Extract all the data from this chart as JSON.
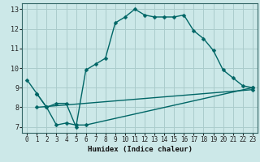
{
  "title": "",
  "xlabel": "Humidex (Indice chaleur)",
  "ylabel": "",
  "background_color": "#cce8e8",
  "grid_color": "#aacccc",
  "line_color": "#006666",
  "xlim": [
    -0.5,
    23.5
  ],
  "ylim": [
    6.7,
    13.3
  ],
  "yticks": [
    7,
    8,
    9,
    10,
    11,
    12,
    13
  ],
  "xticks": [
    0,
    1,
    2,
    3,
    4,
    5,
    6,
    7,
    8,
    9,
    10,
    11,
    12,
    13,
    14,
    15,
    16,
    17,
    18,
    19,
    20,
    21,
    22,
    23
  ],
  "line1_x": [
    0,
    1,
    2,
    3,
    4,
    5,
    6,
    7,
    8,
    9,
    10,
    11,
    12,
    13,
    14,
    15,
    16,
    17,
    18,
    19,
    20,
    21,
    22,
    23
  ],
  "line1_y": [
    9.4,
    8.7,
    8.0,
    8.2,
    8.2,
    7.0,
    9.9,
    10.2,
    10.5,
    12.3,
    12.6,
    13.0,
    12.7,
    12.6,
    12.6,
    12.6,
    12.7,
    11.9,
    11.5,
    10.9,
    9.9,
    9.5,
    9.1,
    9.0
  ],
  "line2_x": [
    1,
    2,
    3,
    4,
    5,
    6,
    23
  ],
  "line2_y": [
    8.7,
    8.0,
    7.1,
    7.2,
    7.1,
    7.1,
    9.0
  ],
  "line3_x": [
    1,
    23
  ],
  "line3_y": [
    8.0,
    8.9
  ],
  "markersize": 2.5,
  "linewidth": 1.0
}
